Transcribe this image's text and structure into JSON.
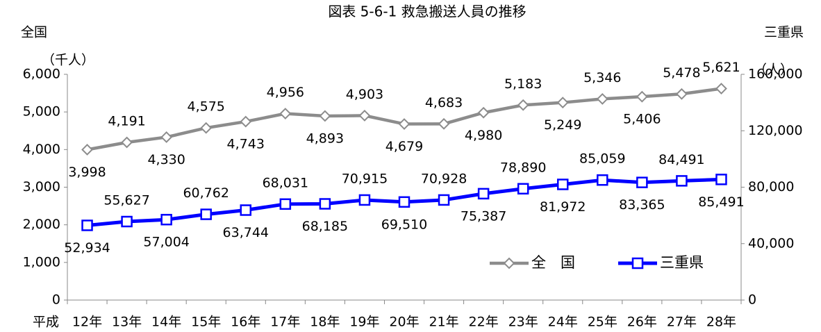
{
  "chart_data": {
    "type": "line",
    "title": "図表 5-6-1 救急搬送人員の推移",
    "y_title": "全国",
    "y2_title": "三重県",
    "y_unit": "（千人）",
    "y2_unit": "（人）",
    "x_label": "平成",
    "categories": [
      "12年",
      "13年",
      "14年",
      "15年",
      "16年",
      "17年",
      "18年",
      "19年",
      "20年",
      "21年",
      "22年",
      "23年",
      "24年",
      "25年",
      "26年",
      "27年",
      "28年"
    ],
    "series": [
      {
        "name": "全　国",
        "color": "#8c8c8c",
        "marker": "diamond",
        "values": [
          3998,
          4191,
          4330,
          4575,
          4743,
          4956,
          4893,
          4903,
          4679,
          4683,
          4980,
          5183,
          5249,
          5346,
          5406,
          5478,
          5621
        ],
        "value_labels": [
          "3,998",
          "4,191",
          "4,330",
          "4,575",
          "4,743",
          "4,956",
          "4,893",
          "4,903",
          "4,679",
          "4,683",
          "4,980",
          "5,183",
          "5,249",
          "5,346",
          "5,406",
          "5,478",
          "5,621"
        ]
      },
      {
        "name": "三重県",
        "color": "#0000ff",
        "marker": "square",
        "axis": "y2",
        "values": [
          52934,
          55627,
          57004,
          60762,
          63744,
          68031,
          68185,
          70915,
          69510,
          70928,
          75387,
          78890,
          81972,
          85059,
          83365,
          84491,
          85491
        ],
        "value_labels": [
          "52,934",
          "55,627",
          "57,004",
          "60,762",
          "63,744",
          "68,031",
          "68,185",
          "70,915",
          "69,510",
          "70,928",
          "75,387",
          "78,890",
          "81,972",
          "85,059",
          "83,365",
          "84,491",
          "85,491"
        ]
      }
    ],
    "ylim": [
      0,
      6000
    ],
    "yticks": [
      0,
      {
        "value": 1000,
        "label": "1,000"
      },
      {
        "value": 2000,
        "label": "2,000"
      },
      {
        "value": 3000,
        "label": "3,000"
      },
      {
        "value": 4000,
        "label": "4,000"
      },
      {
        "value": 5000,
        "label": "5,000"
      },
      {
        "value": 6000,
        "label": "6,000"
      }
    ],
    "y2lim": [
      0,
      160000
    ],
    "y2ticks": [
      0,
      {
        "value": 40000,
        "label": "40,000"
      },
      {
        "value": 80000,
        "label": "80,000"
      },
      {
        "value": 120000,
        "label": "120,000"
      },
      {
        "value": 160000,
        "label": "160,000"
      }
    ],
    "grid": false,
    "legend": "lower right"
  }
}
